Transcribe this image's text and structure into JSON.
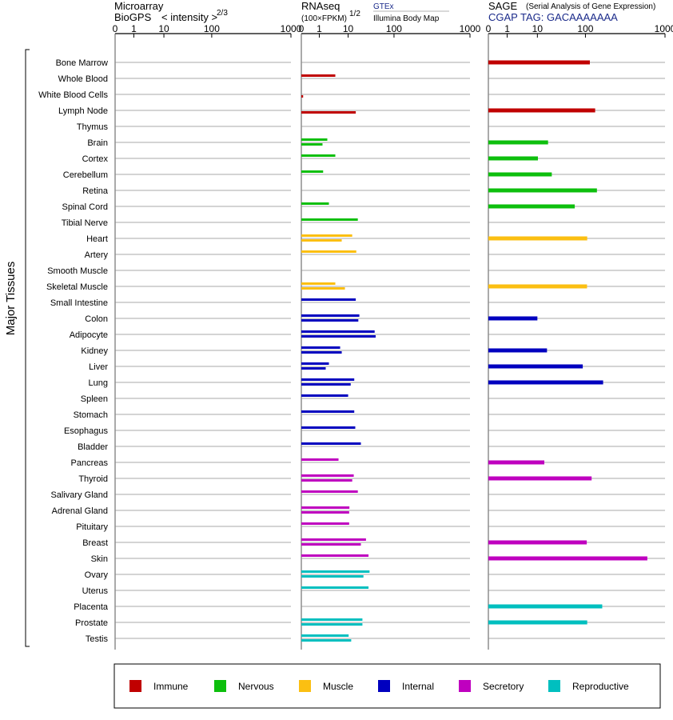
{
  "colors": {
    "Immune": "#c00000",
    "Nervous": "#0dbf0d",
    "Muscle": "#fbbf12",
    "Internal": "#0000bf",
    "Secretory": "#bf00bf",
    "Reproductive": "#00bfbf"
  },
  "panels": {
    "microarray": {
      "title1": "Microarray",
      "title2": "BioGPS",
      "title2_note": "< intensity >",
      "exponent": "2/3"
    },
    "rnaseq": {
      "title1": "RNAseq",
      "unit": "(100×FPKM)",
      "exponent": "1/2",
      "src1": "GTEx",
      "src2": "Illumina Body Map"
    },
    "sage": {
      "title1": "SAGE",
      "title1_note": "(Serial Analysis of Gene Expression)",
      "tag": "CGAP TAG: GACAAAAAAA"
    }
  },
  "side_label": "Major Tissues",
  "legend": [
    "Immune",
    "Nervous",
    "Muscle",
    "Internal",
    "Secretory",
    "Reproductive"
  ],
  "chart_data": {
    "type": "bar",
    "orientation": "horizontal",
    "x_scale": "tick labels 0, 1, 10, 100, 1000 (log-like)",
    "xlim": [
      0,
      1000
    ],
    "ticks": [
      "0",
      "1",
      "10",
      "100",
      "1000"
    ],
    "tissues": [
      {
        "name": "Bone Marrow",
        "system": "Immune",
        "micro": null,
        "gtex": null,
        "ibm": null,
        "sage": 150
      },
      {
        "name": "Whole Blood",
        "system": "Immune",
        "micro": null,
        "gtex": 6,
        "ibm": null,
        "sage": null
      },
      {
        "name": "White Blood Cells",
        "system": "Immune",
        "micro": null,
        "gtex": null,
        "ibm": 0.1,
        "sage": null
      },
      {
        "name": "Lymph Node",
        "system": "Immune",
        "micro": null,
        "gtex": null,
        "ibm": 25,
        "sage": 210
      },
      {
        "name": "Thymus",
        "system": "Immune",
        "micro": null,
        "gtex": null,
        "ibm": null,
        "sage": null
      },
      {
        "name": "Brain",
        "system": "Nervous",
        "micro": null,
        "gtex": 3.5,
        "ibm": 2,
        "sage": 30
      },
      {
        "name": "Cortex",
        "system": "Nervous",
        "micro": null,
        "gtex": 6,
        "ibm": null,
        "sage": 11
      },
      {
        "name": "Cerebellum",
        "system": "Nervous",
        "micro": null,
        "gtex": 2.2,
        "ibm": null,
        "sage": 37
      },
      {
        "name": "Retina",
        "system": "Nervous",
        "micro": null,
        "gtex": null,
        "ibm": null,
        "sage": 230
      },
      {
        "name": "Spinal Cord",
        "system": "Nervous",
        "micro": null,
        "gtex": 4,
        "ibm": null,
        "sage": 80
      },
      {
        "name": "Tibial Nerve",
        "system": "Nervous",
        "micro": null,
        "gtex": 29,
        "ibm": null,
        "sage": null
      },
      {
        "name": "Heart",
        "system": "Muscle",
        "micro": null,
        "gtex": 18,
        "ibm": 8,
        "sage": 120
      },
      {
        "name": "Artery",
        "system": "Muscle",
        "micro": null,
        "gtex": 26,
        "ibm": null,
        "sage": null
      },
      {
        "name": "Smooth Muscle",
        "system": "Muscle",
        "micro": null,
        "gtex": null,
        "ibm": null,
        "sage": null
      },
      {
        "name": "Skeletal Muscle",
        "system": "Muscle",
        "micro": null,
        "gtex": 6,
        "ibm": 9,
        "sage": 118
      },
      {
        "name": "Small Intestine",
        "system": "Internal",
        "micro": null,
        "gtex": 25,
        "ibm": null,
        "sage": null
      },
      {
        "name": "Colon",
        "system": "Internal",
        "micro": null,
        "gtex": 32,
        "ibm": 30,
        "sage": 10
      },
      {
        "name": "Adipocyte",
        "system": "Internal",
        "micro": null,
        "gtex": 62,
        "ibm": 64,
        "sage": null
      },
      {
        "name": "Kidney",
        "system": "Internal",
        "micro": null,
        "gtex": 7.5,
        "ibm": 8,
        "sage": 28
      },
      {
        "name": "Liver",
        "system": "Internal",
        "micro": null,
        "gtex": 4,
        "ibm": 3,
        "sage": 95
      },
      {
        "name": "Lung",
        "system": "Internal",
        "micro": null,
        "gtex": 22,
        "ibm": 15,
        "sage": 300
      },
      {
        "name": "Spleen",
        "system": "Internal",
        "micro": null,
        "gtex": 10,
        "ibm": null,
        "sage": null
      },
      {
        "name": "Stomach",
        "system": "Internal",
        "micro": null,
        "gtex": 22,
        "ibm": null,
        "sage": null
      },
      {
        "name": "Esophagus",
        "system": "Internal",
        "micro": null,
        "gtex": 24,
        "ibm": null,
        "sage": null
      },
      {
        "name": "Bladder",
        "system": "Internal",
        "micro": null,
        "gtex": 35,
        "ibm": null,
        "sage": null
      },
      {
        "name": "Pancreas",
        "system": "Secretory",
        "micro": null,
        "gtex": 7,
        "ibm": null,
        "sage": 23
      },
      {
        "name": "Thyroid",
        "system": "Secretory",
        "micro": null,
        "gtex": 21,
        "ibm": 18,
        "sage": 170
      },
      {
        "name": "Salivary Gland",
        "system": "Secretory",
        "micro": null,
        "gtex": 29,
        "ibm": null,
        "sage": null
      },
      {
        "name": "Adrenal Gland",
        "system": "Secretory",
        "micro": null,
        "gtex": 12.5,
        "ibm": 12,
        "sage": null
      },
      {
        "name": "Pituitary",
        "system": "Secretory",
        "micro": null,
        "gtex": 12,
        "ibm": null,
        "sage": null
      },
      {
        "name": "Breast",
        "system": "Secretory",
        "micro": null,
        "gtex": 45,
        "ibm": 35,
        "sage": 115
      },
      {
        "name": "Skin",
        "system": "Secretory",
        "micro": null,
        "gtex": 50,
        "ibm": null,
        "sage": 800
      },
      {
        "name": "Ovary",
        "system": "Reproductive",
        "micro": null,
        "gtex": 52,
        "ibm": 40,
        "sage": null
      },
      {
        "name": "Uterus",
        "system": "Reproductive",
        "micro": null,
        "gtex": 50,
        "ibm": null,
        "sage": null
      },
      {
        "name": "Placenta",
        "system": "Reproductive",
        "micro": null,
        "gtex": null,
        "ibm": null,
        "sage": 290
      },
      {
        "name": "Prostate",
        "system": "Reproductive",
        "micro": null,
        "gtex": 38,
        "ibm": 38,
        "sage": 120
      },
      {
        "name": "Testis",
        "system": "Reproductive",
        "micro": null,
        "gtex": 11,
        "ibm": 16,
        "sage": null
      }
    ]
  }
}
